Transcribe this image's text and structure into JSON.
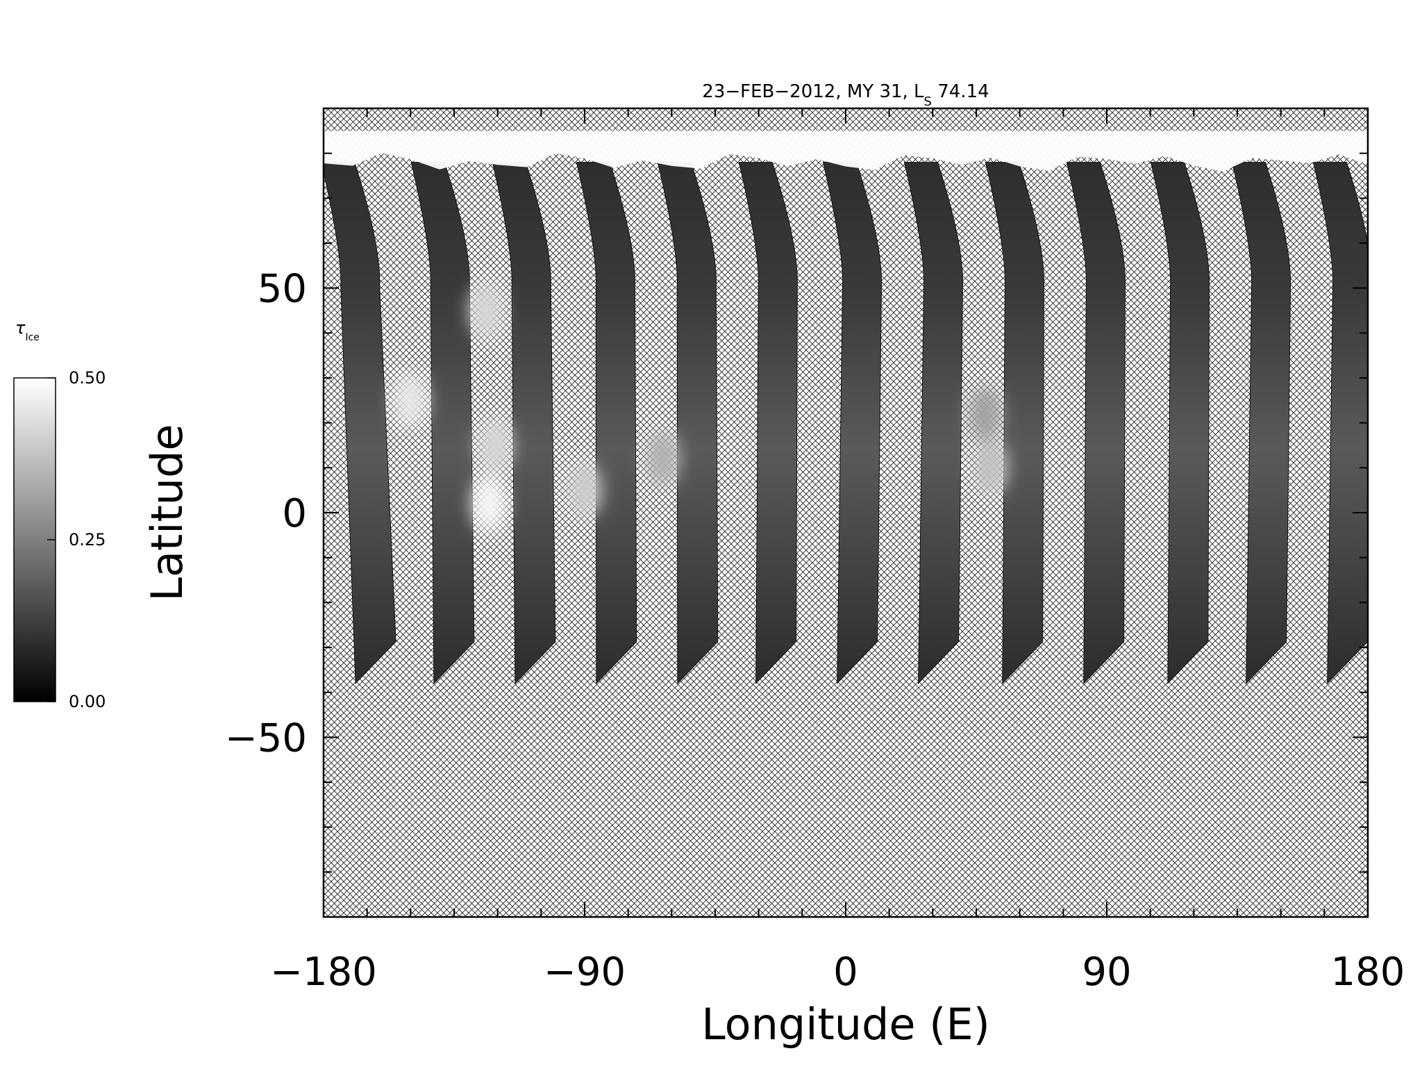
{
  "chart_data": {
    "type": "heatmap",
    "title": {
      "main": "23−FEB−2012, MY 31,  L",
      "subscript": "S",
      "after": " 74.14"
    },
    "xlabel": "Longitude (E)",
    "ylabel": "Latitude",
    "xlim": [
      -180,
      180
    ],
    "ylim": [
      -90,
      90
    ],
    "x_ticks": [
      -180,
      -90,
      0,
      90,
      180
    ],
    "x_tick_labels": [
      "−180",
      "−90",
      "0",
      "90",
      "180"
    ],
    "y_ticks": [
      50,
      0,
      -50
    ],
    "y_tick_labels": [
      "50",
      "0",
      "−50"
    ],
    "minor_x_step": 15,
    "minor_y_step": 10,
    "colorbar": {
      "label": "τ",
      "label_subscript": "Ice",
      "min": 0.0,
      "max": 0.5,
      "ticks": [
        0.5,
        0.25,
        0.0
      ],
      "tick_labels": [
        "0.50",
        "0.25",
        "0.00"
      ],
      "colormap": "gray"
    },
    "no_data_pattern": "crosshatch",
    "swaths": [
      {
        "lon_north": -176,
        "lon_south": -168,
        "lat_bottom": -38
      },
      {
        "lon_north": -145,
        "lon_south": -141,
        "lat_bottom": -38
      },
      {
        "lon_north": -117,
        "lon_south": -113,
        "lat_bottom": -38
      },
      {
        "lon_north": -88,
        "lon_south": -85,
        "lat_bottom": -38
      },
      {
        "lon_north": -60,
        "lon_south": -57,
        "lat_bottom": -38
      },
      {
        "lon_north": -32,
        "lon_south": -30,
        "lat_bottom": -38
      },
      {
        "lon_north": -3,
        "lon_south": -2,
        "lat_bottom": -38
      },
      {
        "lon_north": 25,
        "lon_south": 26,
        "lat_bottom": -38
      },
      {
        "lon_north": 53,
        "lon_south": 55,
        "lat_bottom": -38
      },
      {
        "lon_north": 81,
        "lon_south": 83,
        "lat_bottom": -38
      },
      {
        "lon_north": 110,
        "lon_south": 112,
        "lat_bottom": -38
      },
      {
        "lon_north": 138,
        "lon_south": 139,
        "lat_bottom": -38
      },
      {
        "lon_north": 166,
        "lon_south": 167,
        "lat_bottom": -38
      }
    ],
    "bright_patches": [
      {
        "lon": -150,
        "lat": 25,
        "value": 0.45
      },
      {
        "lon": -121,
        "lat": 15,
        "value": 0.42
      },
      {
        "lon": -123,
        "lat": 2,
        "value": 0.48
      },
      {
        "lon": -124,
        "lat": 45,
        "value": 0.42
      },
      {
        "lon": -90,
        "lat": 5,
        "value": 0.4
      },
      {
        "lon": -63,
        "lat": 12,
        "value": 0.35
      },
      {
        "lon": 50,
        "lat": 10,
        "value": 0.38
      },
      {
        "lon": 48,
        "lat": 22,
        "value": 0.32
      }
    ],
    "polar_cap": {
      "lat_top": 85,
      "lat_edge": 78,
      "value": 0.5
    }
  }
}
